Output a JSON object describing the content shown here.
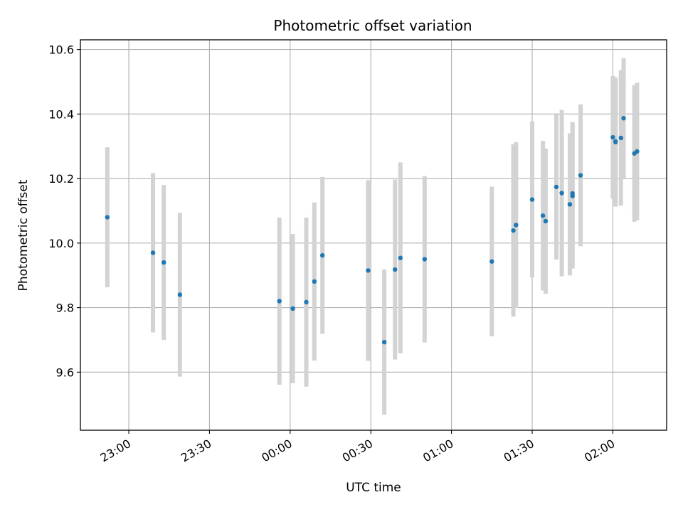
{
  "chart_data": {
    "type": "scatter",
    "title": "Photometric offset variation",
    "xlabel": "UTC time",
    "ylabel": "Photometric offset",
    "grid": true,
    "legend": "none",
    "x_range_minutes": [
      -1378,
      -1438.67
    ],
    "xlim": [
      "22:42",
      "02:20"
    ],
    "ylim": [
      9.42,
      10.63
    ],
    "x_ticks": [
      "23:00",
      "23:30",
      "00:00",
      "00:30",
      "01:00",
      "01:30",
      "02:00"
    ],
    "y_ticks": [
      "9.6",
      "9.8",
      "10.0",
      "10.2",
      "10.4",
      "10.6"
    ],
    "y_tick_values": [
      9.6,
      9.8,
      10.0,
      10.2,
      10.4,
      10.6
    ],
    "colors": {
      "point": "#1f77b4",
      "errorbar": "#d3d3d3",
      "grid": "#b0b0b0"
    },
    "points": [
      {
        "x": "22:52",
        "y": 10.08,
        "err": 0.217
      },
      {
        "x": "23:09",
        "y": 9.97,
        "err": 0.247
      },
      {
        "x": "23:13",
        "y": 9.94,
        "err": 0.24
      },
      {
        "x": "23:19",
        "y": 9.84,
        "err": 0.254
      },
      {
        "x": "23:56",
        "y": 9.82,
        "err": 0.259
      },
      {
        "x": "00:01",
        "y": 9.797,
        "err": 0.231
      },
      {
        "x": "00:06",
        "y": 9.817,
        "err": 0.262
      },
      {
        "x": "00:09",
        "y": 9.881,
        "err": 0.245
      },
      {
        "x": "00:12",
        "y": 9.962,
        "err": 0.243
      },
      {
        "x": "00:29",
        "y": 9.915,
        "err": 0.28
      },
      {
        "x": "00:35",
        "y": 9.693,
        "err": 0.225
      },
      {
        "x": "00:39",
        "y": 9.918,
        "err": 0.279
      },
      {
        "x": "00:41",
        "y": 9.954,
        "err": 0.296
      },
      {
        "x": "00:50",
        "y": 9.95,
        "err": 0.258
      },
      {
        "x": "01:15",
        "y": 9.943,
        "err": 0.232
      },
      {
        "x": "01:23",
        "y": 10.039,
        "err": 0.267
      },
      {
        "x": "01:24",
        "y": 10.056,
        "err": 0.257
      },
      {
        "x": "01:30",
        "y": 10.135,
        "err": 0.242
      },
      {
        "x": "01:34",
        "y": 10.085,
        "err": 0.232
      },
      {
        "x": "01:35",
        "y": 10.068,
        "err": 0.225
      },
      {
        "x": "01:39",
        "y": 10.174,
        "err": 0.225
      },
      {
        "x": "01:41",
        "y": 10.155,
        "err": 0.258
      },
      {
        "x": "01:44",
        "y": 10.12,
        "err": 0.22
      },
      {
        "x": "01:45",
        "y": 10.154,
        "err": 0.221
      },
      {
        "x": "01:45",
        "y": 10.146,
        "err": 0.225
      },
      {
        "x": "01:48",
        "y": 10.21,
        "err": 0.22
      },
      {
        "x": "02:00",
        "y": 10.328,
        "err": 0.19
      },
      {
        "x": "02:01",
        "y": 10.315,
        "err": 0.195
      },
      {
        "x": "02:01",
        "y": 10.313,
        "err": 0.2
      },
      {
        "x": "02:03",
        "y": 10.326,
        "err": 0.21
      },
      {
        "x": "02:04",
        "y": 10.387,
        "err": 0.186
      },
      {
        "x": "02:08",
        "y": 10.278,
        "err": 0.212
      },
      {
        "x": "02:09",
        "y": 10.284,
        "err": 0.213
      }
    ]
  }
}
